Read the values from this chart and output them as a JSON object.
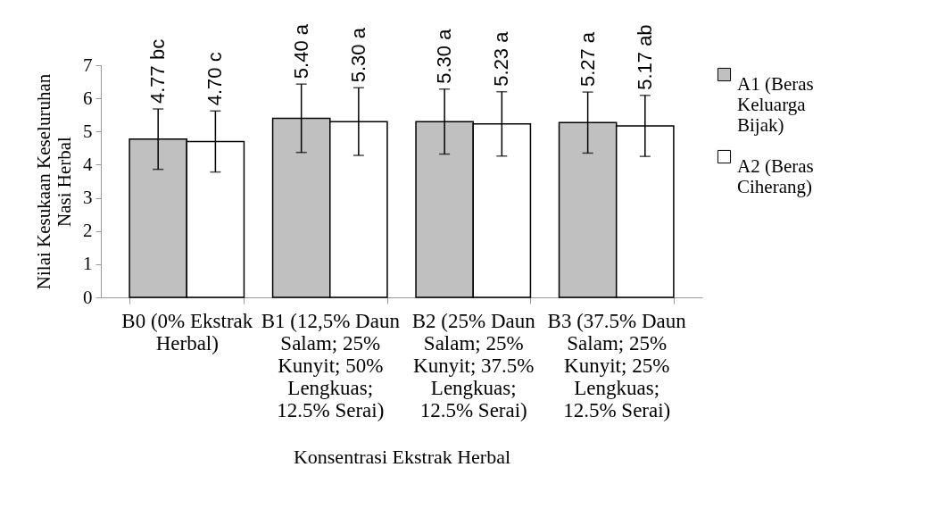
{
  "chart_data": {
    "type": "bar",
    "xlabel": "Konsentrasi Ekstrak Herbal",
    "ylabel": "Nilai Kesukaan Keseluruhan Nasi Herbal",
    "categories": [
      "B0 (0% Ekstrak Herbal)",
      "B1 (12,5% Daun Salam; 25% Kunyit; 50% Lengkuas; 12.5% Serai)",
      "B2 (25% Daun Salam; 25% Kunyit; 37.5% Lengkuas; 12.5% Serai)",
      "B3 (37.5% Daun Salam; 25% Kunyit; 25% Lengkuas; 12.5% Serai)"
    ],
    "series": [
      {
        "name": "A1 (Beras Keluarga Bijak)",
        "color": "#c0c0c0",
        "values": [
          4.77,
          5.4,
          5.3,
          5.27
        ],
        "errors": [
          0.91,
          1.03,
          0.98,
          0.92
        ],
        "value_labels": [
          "4.77 bc",
          "5.40 a",
          "5.30 a",
          "5.27 a"
        ]
      },
      {
        "name": "A2 (Beras Ciherang)",
        "color": "#ffffff",
        "values": [
          4.7,
          5.3,
          5.23,
          5.17
        ],
        "errors": [
          0.92,
          1.02,
          0.97,
          0.92
        ],
        "value_labels": [
          "4.70 c",
          "5.30 a",
          "5.23 a",
          "5.17 ab"
        ]
      }
    ],
    "ylim": [
      0,
      7
    ],
    "yticks": [
      0,
      1,
      2,
      3,
      4,
      5,
      6,
      7
    ],
    "grid": false,
    "legend": "right"
  }
}
